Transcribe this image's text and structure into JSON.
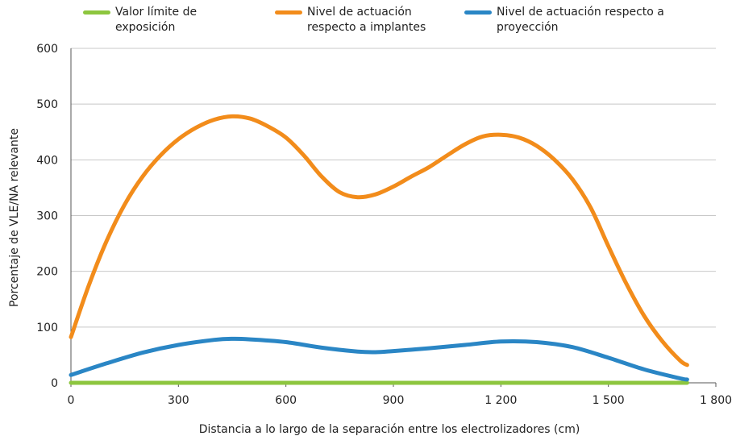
{
  "chart_data": {
    "type": "line",
    "xlabel": "Distancia a lo largo de la separación entre los electrolizadores (cm)",
    "ylabel": "Porcentaje de VLE/NA relevante",
    "xlim": [
      0,
      1800
    ],
    "ylim": [
      0,
      600
    ],
    "x_ticks": [
      0,
      300,
      600,
      900,
      1200,
      1500,
      1800
    ],
    "x_tick_labels": [
      "0",
      "300",
      "600",
      "900",
      "1 200",
      "1 500",
      "1 800"
    ],
    "y_ticks": [
      0,
      100,
      200,
      300,
      400,
      500,
      600
    ],
    "y_tick_labels": [
      "0",
      "100",
      "200",
      "300",
      "400",
      "500",
      "600"
    ],
    "grid": "horizontal",
    "legend_position": "top",
    "series": [
      {
        "name": "Valor límite de exposición",
        "color": "#8dc63f",
        "x": [
          0,
          1720
        ],
        "y": [
          0,
          0
        ]
      },
      {
        "name": "Nivel de actuación respecto a implantes",
        "color": "#f28c1b",
        "x": [
          0,
          50,
          100,
          150,
          200,
          250,
          300,
          350,
          400,
          450,
          500,
          550,
          600,
          650,
          700,
          750,
          800,
          850,
          900,
          950,
          1000,
          1050,
          1100,
          1150,
          1200,
          1250,
          1300,
          1350,
          1400,
          1450,
          1500,
          1550,
          1600,
          1650,
          1700,
          1720
        ],
        "y": [
          82,
          175,
          255,
          320,
          370,
          408,
          437,
          458,
          472,
          478,
          474,
          460,
          440,
          408,
          370,
          342,
          333,
          338,
          352,
          370,
          387,
          408,
          428,
          442,
          445,
          440,
          425,
          400,
          365,
          315,
          245,
          178,
          120,
          75,
          40,
          32
        ]
      },
      {
        "name": "Nivel de actuación respecto a proyección",
        "color": "#2a86c5",
        "x": [
          0,
          100,
          200,
          300,
          400,
          450,
          500,
          600,
          700,
          800,
          850,
          900,
          1000,
          1100,
          1200,
          1300,
          1400,
          1500,
          1600,
          1700,
          1720
        ],
        "y": [
          14,
          35,
          54,
          68,
          77,
          79,
          78,
          73,
          63,
          56,
          55,
          57,
          62,
          68,
          74,
          73,
          64,
          45,
          24,
          8,
          6
        ]
      }
    ]
  }
}
